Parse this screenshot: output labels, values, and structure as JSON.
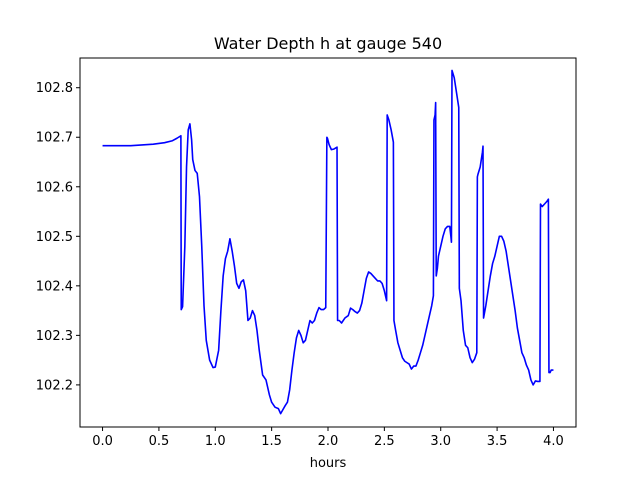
{
  "chart_data": {
    "type": "line",
    "title": "Water Depth h at gauge 540",
    "xlabel": "hours",
    "ylabel": "",
    "xlim": [
      -0.2,
      4.2
    ],
    "ylim": [
      102.115,
      102.86
    ],
    "grid": false,
    "xticks": [
      {
        "value": 0.0,
        "label": "0.0"
      },
      {
        "value": 0.5,
        "label": "0.5"
      },
      {
        "value": 1.0,
        "label": "1.0"
      },
      {
        "value": 1.5,
        "label": "1.5"
      },
      {
        "value": 2.0,
        "label": "2.0"
      },
      {
        "value": 2.5,
        "label": "2.5"
      },
      {
        "value": 3.0,
        "label": "3.0"
      },
      {
        "value": 3.5,
        "label": "3.5"
      },
      {
        "value": 4.0,
        "label": "4.0"
      }
    ],
    "yticks": [
      {
        "value": 102.2,
        "label": "102.2"
      },
      {
        "value": 102.3,
        "label": "102.3"
      },
      {
        "value": 102.4,
        "label": "102.4"
      },
      {
        "value": 102.5,
        "label": "102.5"
      },
      {
        "value": 102.6,
        "label": "102.6"
      },
      {
        "value": 102.7,
        "label": "102.7"
      },
      {
        "value": 102.8,
        "label": "102.8"
      }
    ],
    "series": [
      {
        "color": "#0000ff",
        "x": [
          0.0,
          0.25,
          0.45,
          0.55,
          0.62,
          0.66,
          0.695,
          0.698,
          0.71,
          0.73,
          0.745,
          0.76,
          0.775,
          0.79,
          0.8,
          0.82,
          0.84,
          0.86,
          0.88,
          0.9,
          0.92,
          0.95,
          0.98,
          1.0,
          1.03,
          1.05,
          1.07,
          1.09,
          1.11,
          1.13,
          1.15,
          1.17,
          1.19,
          1.21,
          1.23,
          1.25,
          1.27,
          1.29,
          1.31,
          1.33,
          1.35,
          1.37,
          1.39,
          1.42,
          1.45,
          1.48,
          1.5,
          1.53,
          1.56,
          1.58,
          1.6,
          1.62,
          1.64,
          1.66,
          1.68,
          1.7,
          1.72,
          1.74,
          1.76,
          1.78,
          1.8,
          1.82,
          1.84,
          1.86,
          1.88,
          1.9,
          1.92,
          1.94,
          1.96,
          1.98,
          1.99,
          1.995,
          2.01,
          2.03,
          2.05,
          2.08,
          2.085,
          2.1,
          2.12,
          2.15,
          2.18,
          2.2,
          2.22,
          2.24,
          2.26,
          2.28,
          2.3,
          2.32,
          2.34,
          2.36,
          2.38,
          2.4,
          2.42,
          2.44,
          2.46,
          2.48,
          2.5,
          2.52,
          2.525,
          2.54,
          2.56,
          2.58,
          2.585,
          2.6,
          2.62,
          2.64,
          2.66,
          2.68,
          2.7,
          2.72,
          2.74,
          2.76,
          2.78,
          2.8,
          2.82,
          2.84,
          2.86,
          2.88,
          2.9,
          2.92,
          2.935,
          2.94,
          2.95,
          2.955,
          2.96,
          2.97,
          2.98,
          3.0,
          3.02,
          3.04,
          3.06,
          3.08,
          3.09,
          3.095,
          3.1,
          3.12,
          3.14,
          3.16,
          3.165,
          3.18,
          3.2,
          3.22,
          3.24,
          3.26,
          3.28,
          3.3,
          3.32,
          3.325,
          3.33,
          3.35,
          3.37,
          3.375,
          3.38,
          3.4,
          3.42,
          3.44,
          3.46,
          3.48,
          3.5,
          3.52,
          3.54,
          3.56,
          3.58,
          3.6,
          3.62,
          3.64,
          3.66,
          3.68,
          3.7,
          3.72,
          3.74,
          3.76,
          3.78,
          3.8,
          3.82,
          3.84,
          3.86,
          3.88,
          3.885,
          3.9,
          3.92,
          3.94,
          3.955,
          3.96,
          3.97,
          3.98,
          4.0
        ],
        "y": [
          102.683,
          102.683,
          102.686,
          102.689,
          102.693,
          102.698,
          102.703,
          102.352,
          102.358,
          102.48,
          102.64,
          102.715,
          102.727,
          102.695,
          102.655,
          102.633,
          102.627,
          102.58,
          102.48,
          102.36,
          102.29,
          102.25,
          102.235,
          102.236,
          102.27,
          102.35,
          102.42,
          102.455,
          102.47,
          102.495,
          102.47,
          102.44,
          102.405,
          102.395,
          102.408,
          102.412,
          102.39,
          102.33,
          102.335,
          102.35,
          102.34,
          102.31,
          102.27,
          102.22,
          102.21,
          102.18,
          102.165,
          102.155,
          102.152,
          102.142,
          102.15,
          102.158,
          102.165,
          102.19,
          102.23,
          102.265,
          102.295,
          102.31,
          102.3,
          102.285,
          102.29,
          102.31,
          102.33,
          102.325,
          102.33,
          102.345,
          102.356,
          102.352,
          102.352,
          102.356,
          102.7,
          102.698,
          102.685,
          102.675,
          102.676,
          102.68,
          102.33,
          102.33,
          102.325,
          102.335,
          102.34,
          102.355,
          102.352,
          102.348,
          102.345,
          102.35,
          102.365,
          102.39,
          102.415,
          102.428,
          102.425,
          102.42,
          102.415,
          102.41,
          102.41,
          102.405,
          102.39,
          102.37,
          102.745,
          102.735,
          102.715,
          102.69,
          102.33,
          102.31,
          102.285,
          102.27,
          102.255,
          102.248,
          102.245,
          102.242,
          102.232,
          102.238,
          102.238,
          102.25,
          102.265,
          102.28,
          102.3,
          102.32,
          102.34,
          102.36,
          102.38,
          102.735,
          102.745,
          102.77,
          102.42,
          102.435,
          102.46,
          102.48,
          102.5,
          102.515,
          102.52,
          102.52,
          102.5,
          102.488,
          102.835,
          102.82,
          102.79,
          102.76,
          102.395,
          102.37,
          102.31,
          102.28,
          102.275,
          102.255,
          102.245,
          102.252,
          102.265,
          102.62,
          102.625,
          102.64,
          102.67,
          102.682,
          102.335,
          102.36,
          102.39,
          102.42,
          102.445,
          102.46,
          102.48,
          102.5,
          102.5,
          102.49,
          102.47,
          102.44,
          102.41,
          102.38,
          102.35,
          102.315,
          102.29,
          102.265,
          102.255,
          102.24,
          102.23,
          102.21,
          102.2,
          102.208,
          102.207,
          102.207,
          102.565,
          102.56,
          102.565,
          102.57,
          102.575,
          102.225,
          102.225,
          102.23,
          102.23
        ]
      }
    ]
  }
}
